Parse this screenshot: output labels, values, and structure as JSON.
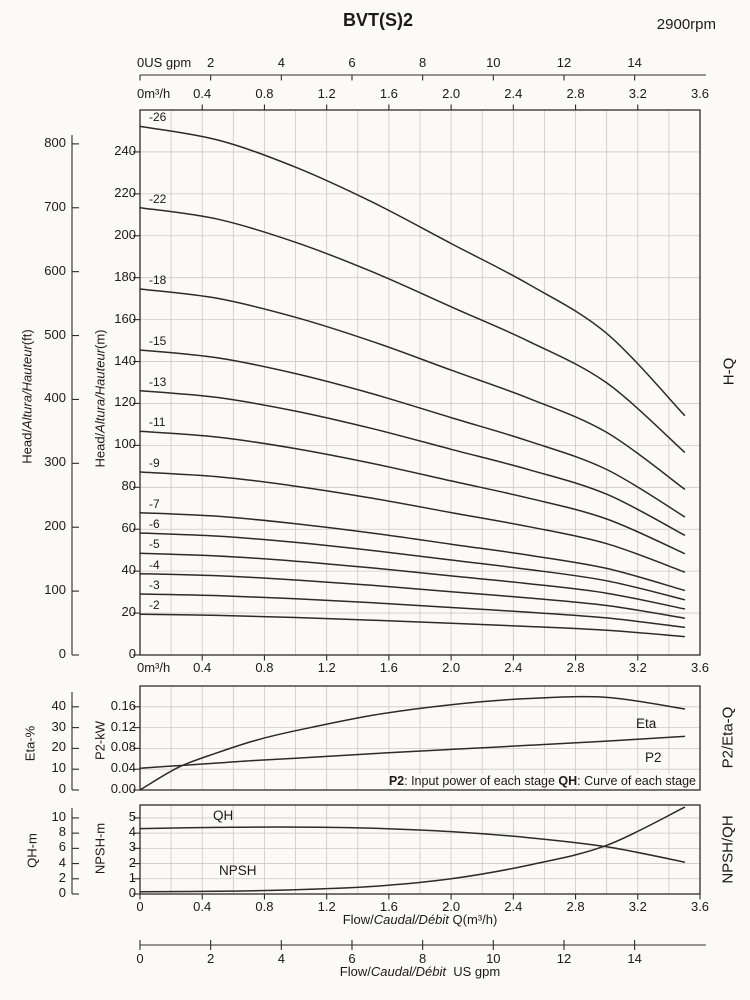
{
  "title": "BVT(S)2",
  "speed": "2900rpm",
  "top_axis_gpm": {
    "origin_label": "0US gpm",
    "ticks": [
      "2",
      "4",
      "6",
      "8",
      "10",
      "12",
      "14"
    ]
  },
  "top_axis_m3h": {
    "origin_label": "0m³/h",
    "ticks": [
      "0.4",
      "0.8",
      "1.2",
      "1.6",
      "2.0",
      "2.4",
      "2.8",
      "3.2",
      "3.6"
    ]
  },
  "main_bottom_axis_m3h": {
    "origin_label": "0m³/h",
    "ticks": [
      "0.4",
      "0.8",
      "1.2",
      "1.6",
      "2.0",
      "2.4",
      "2.8",
      "3.2",
      "3.6"
    ]
  },
  "left_axis_ft": {
    "label_pre": "Head/",
    "label_italic": "Altura/Hauteur",
    "label_post": "(ft)",
    "ticks": [
      "0",
      "100",
      "200",
      "300",
      "400",
      "500",
      "600",
      "700",
      "800"
    ]
  },
  "left_axis_m": {
    "label_pre": "Head/",
    "label_italic": "Altura/Hauteur",
    "label_post": "(m)",
    "ticks": [
      "0",
      "20",
      "40",
      "60",
      "80",
      "100",
      "120",
      "140",
      "160",
      "180",
      "200",
      "220",
      "240"
    ]
  },
  "right_labels": {
    "main": "H-Q",
    "mid": "P2/Eta-Q",
    "bottom": "NPSH/QH"
  },
  "curve_labels": [
    "-26",
    "-22",
    "-18",
    "-15",
    "-13",
    "-11",
    "-9",
    "-7",
    "-6",
    "-5",
    "-4",
    "-3",
    "-2"
  ],
  "mid_chart": {
    "eta_axis": {
      "label": "Eta-%",
      "ticks": [
        "0",
        "10",
        "20",
        "30",
        "40"
      ]
    },
    "p2_axis": {
      "label": "P2-kW",
      "ticks": [
        "0.00",
        "0.04",
        "0.08",
        "0.12",
        "0.16"
      ]
    },
    "eta_curve_label": "Eta",
    "p2_curve_label": "P2",
    "note": {
      "bold1": "P2",
      "text1": ": Input power of each stage ",
      "bold2": "QH",
      "text2": ": Curve of each stage"
    }
  },
  "bottom_chart": {
    "qh_axis": {
      "label": "QH-m",
      "ticks": [
        "0",
        "2",
        "4",
        "6",
        "8",
        "10"
      ]
    },
    "npsh_axis": {
      "label": "NPSH-m",
      "ticks": [
        "0",
        "1",
        "2",
        "3",
        "4",
        "5"
      ]
    },
    "qh_curve_label": "QH",
    "npsh_curve_label": "NPSH"
  },
  "bottom_axis_m3h": {
    "ticks": [
      "0",
      "0.4",
      "0.8",
      "1.2",
      "1.6",
      "2.0",
      "2.4",
      "2.8",
      "3.2",
      "3.6"
    ],
    "title_pre": "Flow/",
    "title_italic": "Caudal/Débit",
    "title_post": " Q(m³/h)"
  },
  "bottom_axis_gpm": {
    "ticks": [
      "0",
      "2",
      "4",
      "6",
      "8",
      "10",
      "12",
      "14"
    ],
    "title_pre": "Flow/",
    "title_italic": "Caudal/Débit",
    "title_post": "  US gpm"
  },
  "chart_data": [
    {
      "type": "line",
      "name": "H-Q",
      "title": "BVT(S)2 head curves per stage count",
      "xlabel": "Flow Q (m³/h)",
      "ylabel": "Head (m)",
      "xlim": [
        0,
        3.6
      ],
      "ylim_m": [
        0,
        260
      ],
      "ylim_ft": [
        0,
        853
      ],
      "grid_step_x": 0.2,
      "grid_step_y_m": 20,
      "x_m3h": [
        0,
        0.5,
        1.0,
        1.5,
        2.0,
        2.5,
        3.0,
        3.5
      ],
      "head_per_stage_m": [
        9.7,
        9.45,
        8.95,
        8.3,
        7.55,
        6.8,
        5.9,
        4.4
      ],
      "stages": [
        26,
        22,
        18,
        15,
        13,
        11,
        9,
        7,
        6,
        5,
        4,
        3,
        2
      ]
    },
    {
      "type": "line",
      "name": "P2/Eta-Q",
      "x_m3h": [
        0,
        0.25,
        0.5,
        0.75,
        1.0,
        1.5,
        2.0,
        2.5,
        3.0,
        3.5
      ],
      "series": [
        {
          "name": "Eta",
          "unit": "%",
          "ylim": [
            0,
            50
          ],
          "values": [
            0,
            11,
            18,
            24,
            28.5,
            36,
            41,
            44,
            44.5,
            39
          ]
        },
        {
          "name": "P2",
          "unit": "kW",
          "ylim": [
            0,
            0.2
          ],
          "values": [
            0.042,
            0.047,
            0.052,
            0.057,
            0.061,
            0.07,
            0.078,
            0.086,
            0.094,
            0.103
          ]
        }
      ]
    },
    {
      "type": "line",
      "name": "NPSH/QH",
      "x_m3h": [
        0,
        0.5,
        1.0,
        1.5,
        2.0,
        2.5,
        3.0,
        3.5
      ],
      "series": [
        {
          "name": "QH",
          "unit": "m",
          "ylim": [
            0,
            11.7
          ],
          "values": [
            8.6,
            8.75,
            8.8,
            8.65,
            8.2,
            7.4,
            6.2,
            4.2
          ]
        },
        {
          "name": "NPSH",
          "unit": "m",
          "ylim": [
            0,
            5.85
          ],
          "values": [
            0.15,
            0.18,
            0.28,
            0.5,
            1.0,
            1.9,
            3.2,
            5.7
          ]
        }
      ]
    }
  ]
}
